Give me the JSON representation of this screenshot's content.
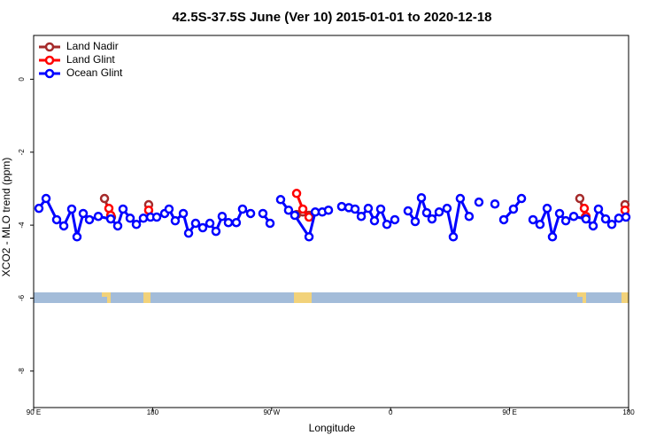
{
  "chart_data": {
    "type": "line",
    "title": "42.5S-37.5S June (Ver 10)   2015-01-01 to 2020-12-18",
    "x_label": "Longitude",
    "y_label": "XCO2 - MLO trend (ppm)",
    "xlim": [
      90,
      540
    ],
    "ylim": [
      -9,
      1.2
    ],
    "xticks": [
      {
        "value": 90,
        "label": "90 E"
      },
      {
        "value": 180,
        "label": "180"
      },
      {
        "value": 270,
        "label": "90 W"
      },
      {
        "value": 360,
        "label": "0"
      },
      {
        "value": 450,
        "label": "90 E"
      },
      {
        "value": 540,
        "label": "180"
      }
    ],
    "yticks": [
      0,
      -2,
      -4,
      -6,
      -8
    ],
    "legend": "top-left",
    "series": [
      {
        "name": "Land Nadir",
        "color": "#a52a2a",
        "x": [
          143.6,
          148.9,
          null,
          177.0,
          null,
          288.9,
          293.6,
          298.3,
          null,
          503.1,
          507.2,
          null,
          537.3
        ],
        "values": [
          -3.27,
          -3.78,
          null,
          -3.44,
          null,
          -3.71,
          -3.64,
          -3.73,
          null,
          -3.27,
          -3.78,
          null,
          -3.44
        ]
      },
      {
        "name": "Land Glint",
        "color": "#ff0000",
        "x": [
          146.9,
          148.3,
          null,
          177.0,
          null,
          288.9,
          293.6,
          298.3,
          null,
          506.5,
          507.8,
          null,
          537.3
        ],
        "values": [
          -3.54,
          -3.73,
          null,
          -3.59,
          null,
          -3.13,
          -3.56,
          -3.78,
          null,
          -3.54,
          -3.76,
          null,
          -3.59
        ]
      },
      {
        "name": "Ocean Glint",
        "color": "#0000ff",
        "x": [
          94.0,
          99.4,
          107.4,
          112.8,
          118.8,
          122.8,
          127.5,
          132.2,
          138.9,
          148.3,
          153.6,
          157.6,
          163.0,
          167.7,
          173.0,
          178.4,
          183.1,
          189.1,
          192.4,
          197.1,
          203.2,
          207.2,
          212.5,
          217.9,
          223.3,
          227.9,
          232.6,
          237.3,
          243.3,
          248.0,
          254.1,
          null,
          263.4,
          268.8,
          null,
          276.8,
          282.8,
          287.5,
          298.3,
          303.0,
          308.3,
          313.0,
          null,
          323.0,
          328.4,
          333.1,
          337.8,
          343.1,
          347.8,
          352.5,
          357.2,
          363.2,
          null,
          373.2,
          378.6,
          383.3,
          387.3,
          391.3,
          396.7,
          402.7,
          407.4,
          412.7,
          419.4,
          null,
          426.8,
          null,
          438.9,
          null,
          445.6,
          452.9,
          459.0,
          null,
          467.7,
          473.0,
          478.4,
          482.4,
          487.8,
          492.5,
          498.5,
          507.8,
          513.2,
          517.2,
          522.6,
          527.3,
          532.6,
          538.0
        ],
        "values": [
          -3.54,
          -3.27,
          -3.85,
          -4.02,
          -3.56,
          -4.32,
          -3.68,
          -3.85,
          -3.76,
          -3.83,
          -4.02,
          -3.56,
          -3.81,
          -3.98,
          -3.81,
          -3.78,
          -3.78,
          -3.68,
          -3.56,
          -3.88,
          -3.68,
          -4.22,
          -3.95,
          -4.07,
          -3.95,
          -4.17,
          -3.76,
          -3.93,
          -3.93,
          -3.56,
          -3.68,
          null,
          -3.68,
          -3.95,
          null,
          -3.3,
          -3.59,
          -3.73,
          -4.32,
          -3.64,
          -3.64,
          -3.59,
          null,
          -3.49,
          -3.52,
          -3.56,
          -3.76,
          -3.54,
          -3.88,
          -3.56,
          -3.98,
          -3.85,
          null,
          -3.61,
          -3.9,
          -3.25,
          -3.66,
          -3.83,
          -3.64,
          -3.54,
          -4.32,
          -3.27,
          -3.76,
          null,
          -3.37,
          null,
          -3.42,
          null,
          -3.85,
          -3.56,
          -3.27,
          null,
          -3.85,
          -3.98,
          -3.54,
          -4.32,
          -3.68,
          -3.88,
          -3.76,
          -3.83,
          -4.02,
          -3.56,
          -3.83,
          -3.98,
          -3.81,
          -3.78
        ]
      }
    ]
  }
}
